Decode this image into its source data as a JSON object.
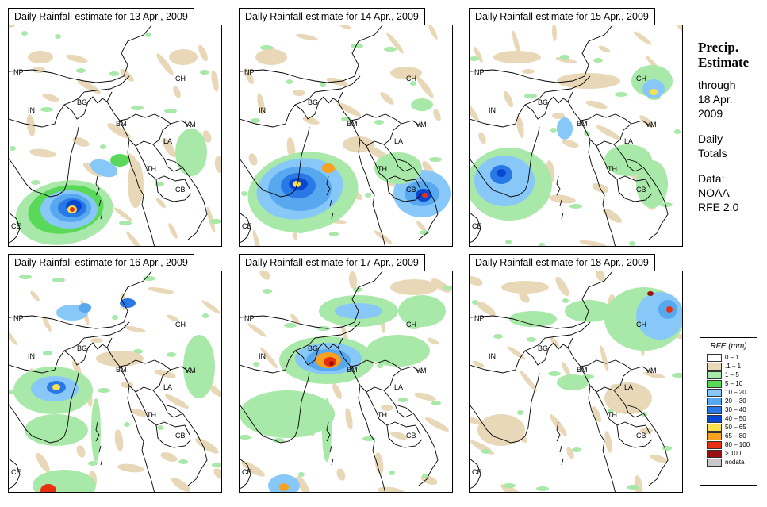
{
  "panels": [
    {
      "title": "Daily Rainfall estimate for  13 Apr., 2009"
    },
    {
      "title": "Daily Rainfall estimate for  14 Apr., 2009"
    },
    {
      "title": "Daily Rainfall estimate for  15 Apr., 2009"
    },
    {
      "title": "Daily Rainfall estimate for  16 Apr., 2009"
    },
    {
      "title": "Daily Rainfall estimate for  17 Apr., 2009"
    },
    {
      "title": "Daily Rainfall estimate for  18 Apr., 2009"
    }
  ],
  "country_labels": [
    "NP",
    "CH",
    "IN",
    "BG",
    "BM",
    "VM",
    "LA",
    "TH",
    "CB",
    "CE"
  ],
  "side": {
    "heading1": "Precip.",
    "heading2": "Estimate",
    "through": "through",
    "date1": "18 Apr.",
    "date2": "2009",
    "daily1": "Daily",
    "daily2": "Totals",
    "data1": "Data:",
    "data2": "NOAA–",
    "data3": "RFE 2.0"
  },
  "legend": {
    "title": "RFE (mm)",
    "items": [
      {
        "label": "0 – 1",
        "color": "#ffffff"
      },
      {
        "label": ".1 – 1",
        "color": "#e8d8b8"
      },
      {
        "label": "1 – 5",
        "color": "#a8e8a8"
      },
      {
        "label": "5 – 10",
        "color": "#5ad85a"
      },
      {
        "label": "10 – 20",
        "color": "#88c8f8"
      },
      {
        "label": "20 – 30",
        "color": "#58a8f0"
      },
      {
        "label": "30 – 40",
        "color": "#2878e8"
      },
      {
        "label": "40 – 50",
        "color": "#0848d0"
      },
      {
        "label": "50 – 65",
        "color": "#f8e050"
      },
      {
        "label": "65 – 80",
        "color": "#f8a020"
      },
      {
        "label": "80 – 100",
        "color": "#e83010"
      },
      {
        "label": "> 100",
        "color": "#981010"
      },
      {
        "label": "nodata",
        "color": "#c8c8c8"
      }
    ]
  }
}
